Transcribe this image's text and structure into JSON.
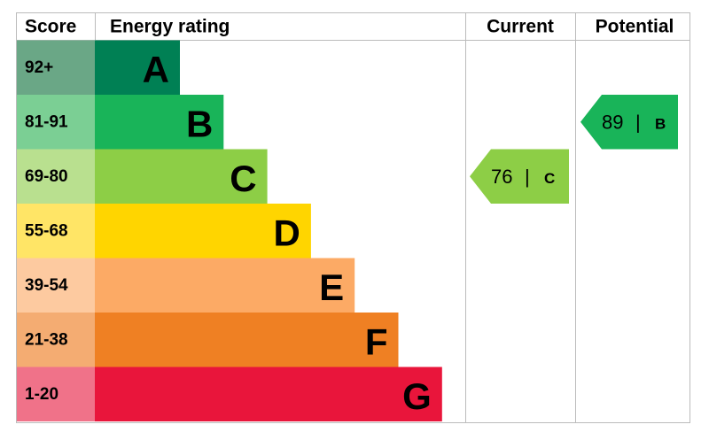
{
  "header": {
    "score": "Score",
    "rating": "Energy rating",
    "current": "Current",
    "potential": "Potential"
  },
  "rows": [
    {
      "score": "92+",
      "letter": "A",
      "color": "#008054",
      "score_color": "#6aa786"
    },
    {
      "score": "81-91",
      "letter": "B",
      "color": "#19b459",
      "score_color": "#7bcf94"
    },
    {
      "score": "69-80",
      "letter": "C",
      "color": "#8dce46",
      "score_color": "#b9e08f"
    },
    {
      "score": "55-68",
      "letter": "D",
      "color": "#ffd500",
      "score_color": "#ffe566"
    },
    {
      "score": "39-54",
      "letter": "E",
      "color": "#fcaa65",
      "score_color": "#fdcaa0"
    },
    {
      "score": "21-38",
      "letter": "F",
      "color": "#ef8023",
      "score_color": "#f4ac72"
    },
    {
      "score": "1-20",
      "letter": "G",
      "color": "#e9153b",
      "score_color": "#f07289"
    }
  ],
  "current": {
    "value": 76,
    "separator": "|",
    "letter": "C",
    "color": "#8dce46"
  },
  "potential": {
    "value": 89,
    "separator": "|",
    "letter": "B",
    "color": "#19b459"
  }
}
